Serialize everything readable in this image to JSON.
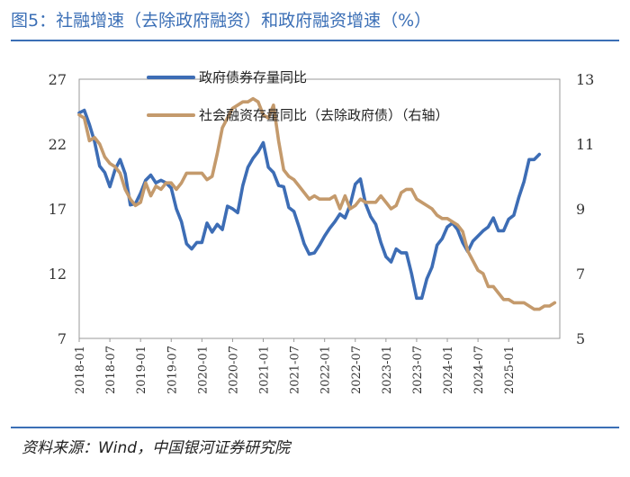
{
  "title": "图5：社融增速（去除政府融资）和政府融资增速（%）",
  "source": "资料来源：Wind，中国银河证券研究院",
  "colors": {
    "blue": "#3d6db5",
    "tan": "#c49a6c",
    "accent": "#3b6fb6"
  },
  "chart_data": {
    "type": "line",
    "x_ticks": [
      "2018-01",
      "2018-07",
      "2019-01",
      "2019-07",
      "2020-01",
      "2020-07",
      "2021-01",
      "2021-07",
      "2022-01",
      "2022-07",
      "2023-01",
      "2023-07",
      "2024-01",
      "2024-07",
      "2025-01"
    ],
    "left_axis": {
      "ticks": [
        "7",
        "12",
        "17",
        "22",
        "27"
      ],
      "range": [
        7,
        27
      ]
    },
    "right_axis": {
      "ticks": [
        "5",
        "7",
        "9",
        "11",
        "13"
      ],
      "range": [
        5,
        13
      ]
    },
    "x_range": [
      0,
      94
    ],
    "legend": [
      {
        "label": "政府债券存量同比",
        "color": "#3d6db5"
      },
      {
        "label": "社会融资存量同比（去除政府债）（右轴）",
        "color": "#c49a6c"
      }
    ],
    "series": [
      {
        "name": "政府债券存量同比",
        "axis": "left",
        "color": "#3d6db5",
        "values": [
          24.4,
          24.6,
          23.5,
          22.2,
          20.3,
          19.8,
          18.7,
          20.0,
          20.8,
          19.7,
          17.3,
          17.4,
          18.2,
          19.2,
          19.6,
          19.0,
          19.2,
          19.0,
          18.6,
          17.0,
          16.0,
          14.3,
          13.9,
          14.4,
          14.4,
          15.9,
          15.2,
          15.8,
          15.4,
          17.2,
          17.0,
          16.7,
          18.8,
          20.2,
          20.9,
          21.4,
          22.1,
          20.2,
          19.8,
          18.8,
          18.7,
          17.1,
          16.8,
          15.6,
          14.3,
          13.5,
          13.6,
          14.2,
          14.9,
          15.5,
          16.0,
          16.6,
          16.3,
          17.3,
          18.9,
          19.3,
          17.4,
          16.4,
          15.8,
          14.4,
          13.3,
          12.9,
          13.9,
          13.6,
          13.6,
          12.0,
          10.1,
          10.1,
          11.6,
          12.5,
          14.2,
          14.7,
          15.6,
          15.9,
          15.4,
          14.4,
          13.7,
          14.5,
          14.9,
          15.3,
          15.6,
          16.3,
          15.3,
          15.3,
          16.2,
          16.5,
          17.9,
          19.1,
          20.8,
          20.8,
          21.2
        ]
      },
      {
        "name": "社会融资存量同比（去除政府债）（右轴）",
        "axis": "right",
        "color": "#c49a6c",
        "values": [
          11.9,
          11.8,
          11.1,
          11.2,
          11.0,
          10.6,
          10.4,
          10.3,
          10.1,
          9.6,
          9.3,
          9.1,
          9.2,
          9.8,
          9.4,
          9.7,
          9.6,
          9.8,
          9.8,
          9.6,
          9.8,
          10.1,
          10.1,
          10.1,
          10.1,
          9.9,
          10.0,
          10.7,
          11.5,
          11.8,
          12.1,
          12.2,
          12.3,
          12.3,
          12.4,
          12.3,
          11.9,
          11.8,
          12.2,
          11.1,
          10.2,
          10.0,
          9.9,
          9.7,
          9.5,
          9.3,
          9.4,
          9.3,
          9.3,
          9.3,
          9.4,
          9.0,
          9.4,
          9.0,
          9.1,
          9.3,
          9.2,
          9.2,
          9.2,
          9.4,
          9.2,
          9.0,
          9.1,
          9.5,
          9.6,
          9.6,
          9.3,
          9.2,
          9.1,
          9.0,
          8.8,
          8.7,
          8.7,
          8.6,
          8.5,
          8.3,
          7.7,
          7.4,
          7.1,
          7.0,
          6.6,
          6.6,
          6.4,
          6.2,
          6.2,
          6.1,
          6.1,
          6.1,
          6.0,
          5.9,
          5.9,
          6.0,
          6.0,
          6.1
        ]
      }
    ]
  }
}
